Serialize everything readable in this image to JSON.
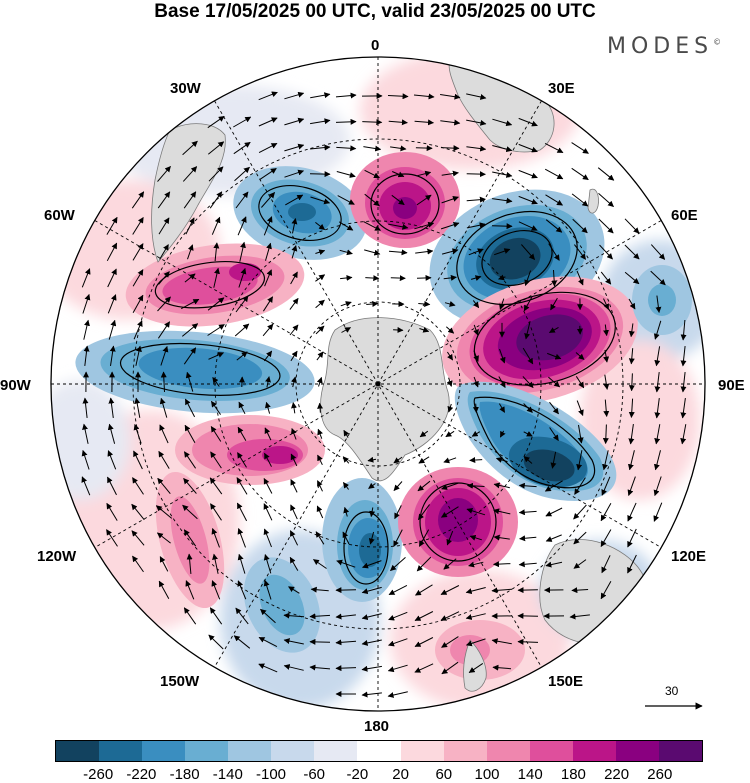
{
  "title": "Base 17/05/2025 00 UTC, valid 23/05/2025 00 UTC",
  "brand": "MODES",
  "brand_mark": "©",
  "longitude_labels": {
    "top": "0",
    "top_right": "30E",
    "upper_right": "60E",
    "right": "90E",
    "lower_right": "120E",
    "bottom_right": "150E",
    "bottom": "180",
    "bottom_left": "150W",
    "lower_left": "120W",
    "left": "90W",
    "upper_left": "60W",
    "top_left": "30W"
  },
  "vector_scale": "30",
  "colorbar": {
    "colors": [
      "#12425f",
      "#1d6a95",
      "#3a8ec0",
      "#69aed2",
      "#9fc6e1",
      "#c8d9ec",
      "#e6e9f3",
      "#ffffff",
      "#fcd9de",
      "#f7b2c4",
      "#ef86ae",
      "#df4f9c",
      "#bb1588",
      "#8a0080",
      "#5a0a70"
    ],
    "tick_labels": [
      "-260",
      "-220",
      "-180",
      "-140",
      "-100",
      "-60",
      "-20",
      "20",
      "60",
      "100",
      "140",
      "180",
      "220",
      "260"
    ]
  },
  "colors": {
    "land": "#dcdcdc",
    "coastline": "#7a7a7a",
    "gridline": "#000000",
    "contour": "#000000"
  }
}
